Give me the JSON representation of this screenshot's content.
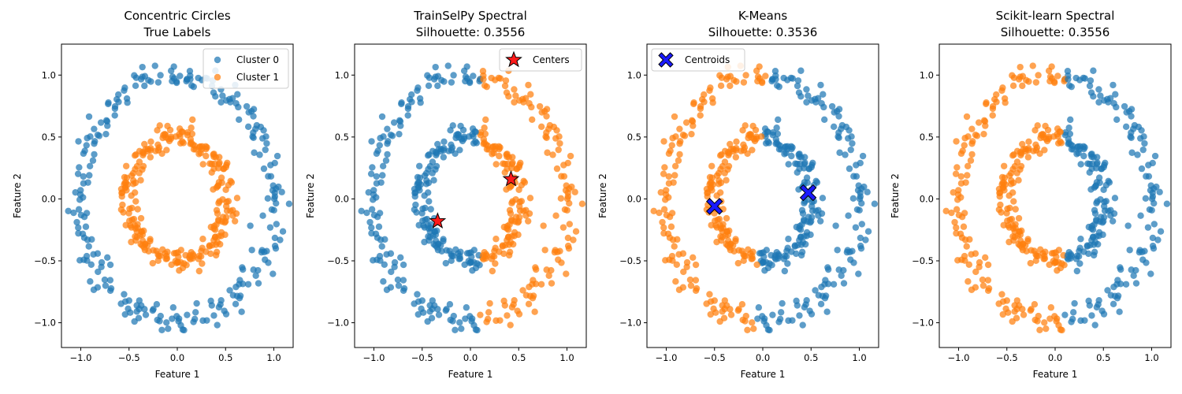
{
  "colors": {
    "cluster0": "#1f77b4",
    "cluster1": "#ff7f0e",
    "star": "#ff1a1a",
    "cross": "#1a1aff",
    "axis": "#000000"
  },
  "chart_data": [
    {
      "type": "scatter",
      "title": [
        "Concentric Circles",
        "True Labels"
      ],
      "xlabel": "Feature 1",
      "ylabel": "Feature 2",
      "xlim": [
        -1.2,
        1.2
      ],
      "ylim": [
        -1.2,
        1.25
      ],
      "xticks": [
        -1.0,
        -0.5,
        0.0,
        0.5,
        1.0
      ],
      "yticks": [
        -1.0,
        -0.5,
        0.0,
        0.5,
        1.0
      ],
      "tick_labels_x": [
        "−1.0",
        "−0.5",
        "0.0",
        "0.5",
        "1.0"
      ],
      "tick_labels_y": [
        "−1.0",
        "−0.5",
        "0.0",
        "0.5",
        "1.0"
      ],
      "coloring": "true",
      "legend": {
        "position": "upper right",
        "entries": [
          {
            "label": "Cluster 0",
            "marker": "circle",
            "color": "#1f77b4"
          },
          {
            "label": "Cluster 1",
            "marker": "circle",
            "color": "#ff7f0e"
          }
        ]
      },
      "series": [
        {
          "name": "Cluster 0",
          "color": "#1f77b4",
          "note": "outer ring, radius ≈ 1.0, 250 points"
        },
        {
          "name": "Cluster 1",
          "color": "#ff7f0e",
          "note": "inner ring, radius ≈ 0.5, 250 points"
        }
      ]
    },
    {
      "type": "scatter",
      "title": [
        "TrainSelPy Spectral",
        "Silhouette: 0.3556"
      ],
      "xlabel": "Feature 1",
      "ylabel": "Feature 2",
      "xlim": [
        -1.2,
        1.2
      ],
      "ylim": [
        -1.2,
        1.25
      ],
      "xticks": [
        -1.0,
        -0.5,
        0.0,
        0.5,
        1.0
      ],
      "yticks": [
        -1.0,
        -0.5,
        0.0,
        0.5,
        1.0
      ],
      "tick_labels_x": [
        "−1.0",
        "−0.5",
        "0.0",
        "0.5",
        "1.0"
      ],
      "tick_labels_y": [
        "−1.0",
        "−0.5",
        "0.0",
        "0.5",
        "1.0"
      ],
      "coloring": "split_x",
      "legend": {
        "position": "upper right",
        "entries": [
          {
            "label": "Centers",
            "marker": "star",
            "color": "#ff1a1a"
          }
        ]
      },
      "centers": {
        "marker": "star",
        "color": "#ff1a1a",
        "points": [
          [
            -0.34,
            -0.18
          ],
          [
            0.42,
            0.16
          ]
        ]
      }
    },
    {
      "type": "scatter",
      "title": [
        "K-Means",
        "Silhouette: 0.3536"
      ],
      "xlabel": "Feature 1",
      "ylabel": "Feature 2",
      "xlim": [
        -1.2,
        1.2
      ],
      "ylim": [
        -1.2,
        1.25
      ],
      "xticks": [
        -1.0,
        -0.5,
        0.0,
        0.5,
        1.0
      ],
      "yticks": [
        -1.0,
        -0.5,
        0.0,
        0.5,
        1.0
      ],
      "tick_labels_x": [
        "−1.0",
        "−0.5",
        "0.0",
        "0.5",
        "1.0"
      ],
      "tick_labels_y": [
        "−1.0",
        "−0.5",
        "0.0",
        "0.5",
        "1.0"
      ],
      "coloring": "split_line",
      "legend": {
        "position": "upper left",
        "entries": [
          {
            "label": "Centroids",
            "marker": "x",
            "color": "#1a1aff"
          }
        ]
      },
      "centers": {
        "marker": "x",
        "color": "#1a1aff",
        "points": [
          [
            -0.5,
            -0.06
          ],
          [
            0.47,
            0.05
          ]
        ]
      }
    },
    {
      "type": "scatter",
      "title": [
        "Scikit-learn Spectral",
        "Silhouette: 0.3556"
      ],
      "xlabel": "Feature 1",
      "ylabel": "Feature 2",
      "xlim": [
        -1.2,
        1.2
      ],
      "ylim": [
        -1.2,
        1.25
      ],
      "xticks": [
        -1.0,
        -0.5,
        0.0,
        0.5,
        1.0
      ],
      "yticks": [
        -1.0,
        -0.5,
        0.0,
        0.5,
        1.0
      ],
      "tick_labels_x": [
        "−1.0",
        "−0.5",
        "0.0",
        "0.5",
        "1.0"
      ],
      "tick_labels_y": [
        "−1.0",
        "−0.5",
        "0.0",
        "0.5",
        "1.0"
      ],
      "coloring": "split_x_inverted"
    }
  ]
}
